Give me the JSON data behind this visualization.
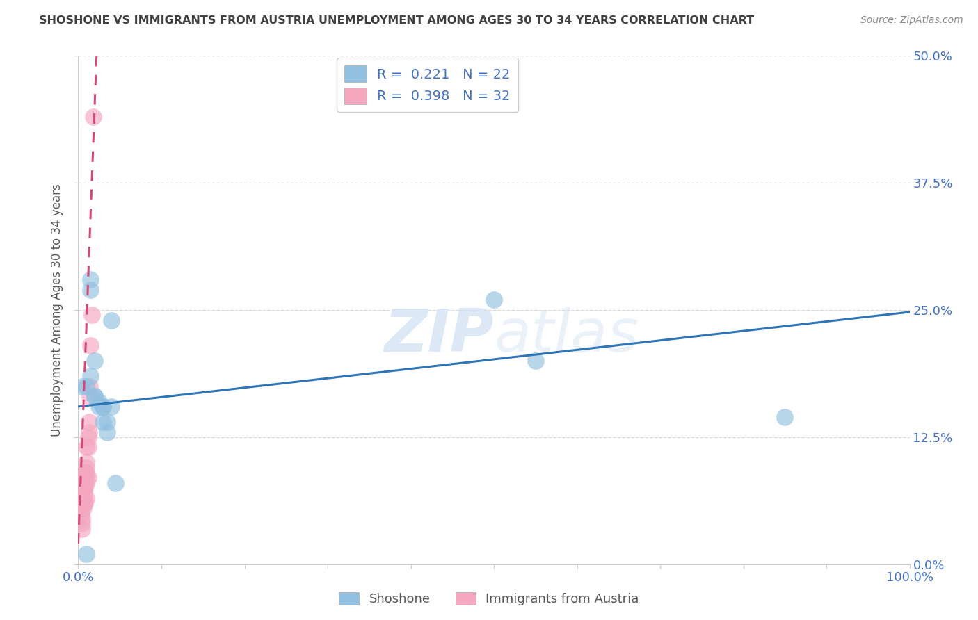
{
  "title": "SHOSHONE VS IMMIGRANTS FROM AUSTRIA UNEMPLOYMENT AMONG AGES 30 TO 34 YEARS CORRELATION CHART",
  "source": "Source: ZipAtlas.com",
  "ylabel": "Unemployment Among Ages 30 to 34 years",
  "shoshone_x": [
    0.005,
    0.01,
    0.015,
    0.015,
    0.02,
    0.02,
    0.025,
    0.025,
    0.03,
    0.03,
    0.03,
    0.035,
    0.035,
    0.04,
    0.04,
    0.045,
    0.015,
    0.02,
    0.5,
    0.55,
    0.85,
    0.01
  ],
  "shoshone_y": [
    0.175,
    0.175,
    0.27,
    0.185,
    0.165,
    0.165,
    0.155,
    0.16,
    0.155,
    0.14,
    0.155,
    0.14,
    0.13,
    0.24,
    0.155,
    0.08,
    0.28,
    0.2,
    0.26,
    0.2,
    0.145,
    0.01
  ],
  "austria_x": [
    0.003,
    0.004,
    0.005,
    0.005,
    0.005,
    0.006,
    0.006,
    0.007,
    0.007,
    0.007,
    0.008,
    0.008,
    0.008,
    0.008,
    0.009,
    0.009,
    0.01,
    0.01,
    0.01,
    0.01,
    0.01,
    0.01,
    0.012,
    0.012,
    0.012,
    0.013,
    0.013,
    0.014,
    0.014,
    0.015,
    0.016,
    0.018
  ],
  "austria_y": [
    0.06,
    0.05,
    0.045,
    0.04,
    0.035,
    0.065,
    0.055,
    0.075,
    0.07,
    0.06,
    0.085,
    0.08,
    0.075,
    0.06,
    0.09,
    0.085,
    0.115,
    0.1,
    0.095,
    0.09,
    0.08,
    0.065,
    0.125,
    0.115,
    0.085,
    0.14,
    0.13,
    0.175,
    0.165,
    0.215,
    0.245,
    0.44
  ],
  "blue_trend_x0": 0.0,
  "blue_trend_y0": 0.155,
  "blue_trend_x1": 1.0,
  "blue_trend_y1": 0.248,
  "pink_trend_x0": 0.0,
  "pink_trend_y0": 0.02,
  "pink_trend_x1": 0.022,
  "pink_trend_y1": 0.5,
  "shoshone_R": 0.221,
  "shoshone_N": 22,
  "austria_R": 0.398,
  "austria_N": 32,
  "blue_color": "#92c0e0",
  "pink_color": "#f4a7bf",
  "blue_line_color": "#2e75b6",
  "pink_line_color": "#d4497a",
  "title_color": "#404040",
  "axis_label_color": "#595959",
  "tick_label_color": "#4472c4",
  "grid_color": "#d9d9d9",
  "legend_text_color": "#4472c4",
  "watermark_color": "#d6e4f5",
  "xlim": [
    0.0,
    1.0
  ],
  "ylim": [
    0.0,
    0.5
  ],
  "yticks": [
    0.0,
    0.125,
    0.25,
    0.375,
    0.5
  ],
  "ytick_labels": [
    "0.0%",
    "12.5%",
    "25.0%",
    "37.5%",
    "50.0%"
  ],
  "figsize": [
    14.06,
    8.92
  ],
  "dpi": 100
}
